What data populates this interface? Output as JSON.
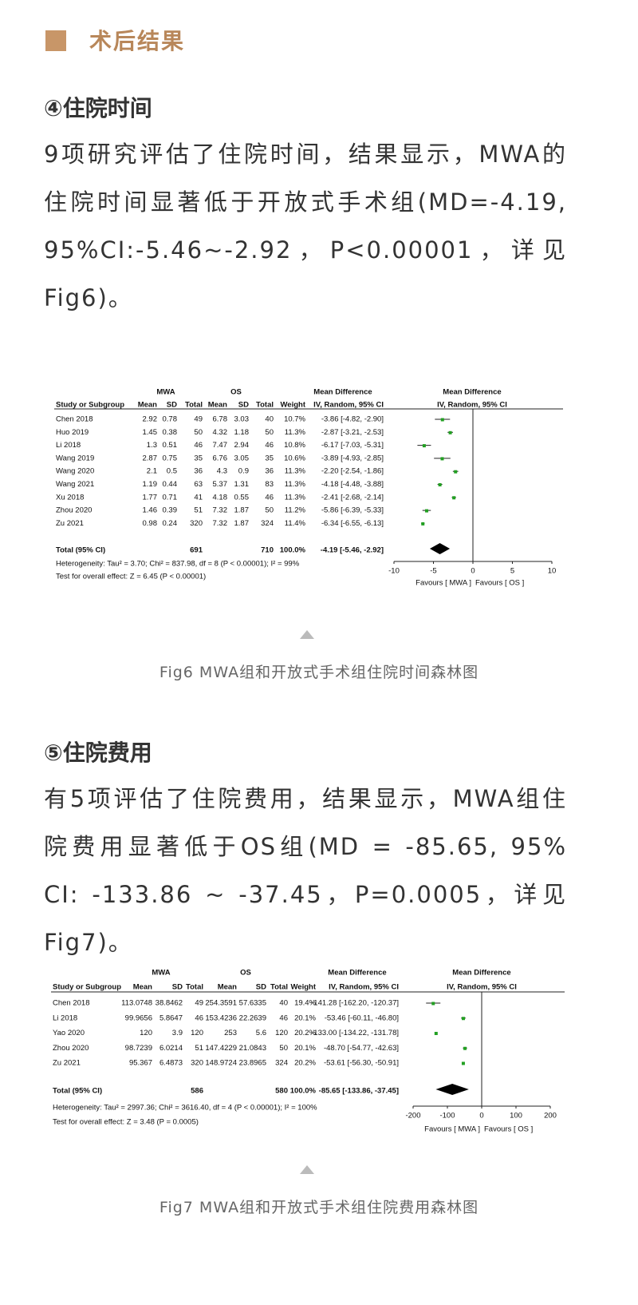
{
  "section_title": "术后结果",
  "subsections": [
    {
      "heading": "④住院时间",
      "paragraph": "9项研究评估了住院时间，结果显示，MWA的住院时间显著低于开放式手术组(MD=-4.19, 95%CI:-5.46~-2.92，P<0.00001，详见Fig6)。",
      "figure": {
        "group1": "MWA",
        "group2": "OS",
        "effect_header": "Mean Difference",
        "plot_header": "Mean Difference",
        "columns": [
          "Study or Subgroup",
          "Mean",
          "SD",
          "Total",
          "Mean",
          "SD",
          "Total",
          "Weight",
          "IV, Random, 95% CI"
        ],
        "plot_method": "IV, Random, 95% CI",
        "rows": [
          {
            "cells": [
              "Chen 2018",
              "2.92",
              "0.78",
              "49",
              "6.78",
              "3.03",
              "40",
              "10.7%",
              "-3.86 [-4.82, -2.90]"
            ],
            "md": -3.86,
            "lo": -4.82,
            "hi": -2.9
          },
          {
            "cells": [
              "Huo 2019",
              "1.45",
              "0.38",
              "50",
              "4.32",
              "1.18",
              "50",
              "11.3%",
              "-2.87 [-3.21, -2.53]"
            ],
            "md": -2.87,
            "lo": -3.21,
            "hi": -2.53
          },
          {
            "cells": [
              "Li 2018",
              "1.3",
              "0.51",
              "46",
              "7.47",
              "2.94",
              "46",
              "10.8%",
              "-6.17 [-7.03, -5.31]"
            ],
            "md": -6.17,
            "lo": -7.03,
            "hi": -5.31
          },
          {
            "cells": [
              "Wang 2019",
              "2.87",
              "0.75",
              "35",
              "6.76",
              "3.05",
              "35",
              "10.6%",
              "-3.89 [-4.93, -2.85]"
            ],
            "md": -3.89,
            "lo": -4.93,
            "hi": -2.85
          },
          {
            "cells": [
              "Wang 2020",
              "2.1",
              "0.5",
              "36",
              "4.3",
              "0.9",
              "36",
              "11.3%",
              "-2.20 [-2.54, -1.86]"
            ],
            "md": -2.2,
            "lo": -2.54,
            "hi": -1.86
          },
          {
            "cells": [
              "Wang 2021",
              "1.19",
              "0.44",
              "63",
              "5.37",
              "1.31",
              "83",
              "11.3%",
              "-4.18 [-4.48, -3.88]"
            ],
            "md": -4.18,
            "lo": -4.48,
            "hi": -3.88
          },
          {
            "cells": [
              "Xu 2018",
              "1.77",
              "0.71",
              "41",
              "4.18",
              "0.55",
              "46",
              "11.3%",
              "-2.41 [-2.68, -2.14]"
            ],
            "md": -2.41,
            "lo": -2.68,
            "hi": -2.14
          },
          {
            "cells": [
              "Zhou 2020",
              "1.46",
              "0.39",
              "51",
              "7.32",
              "1.87",
              "50",
              "11.2%",
              "-5.86 [-6.39, -5.33]"
            ],
            "md": -5.86,
            "lo": -6.39,
            "hi": -5.33
          },
          {
            "cells": [
              "Zu 2021",
              "0.98",
              "0.24",
              "320",
              "7.32",
              "1.87",
              "324",
              "11.4%",
              "-6.34 [-6.55, -6.13]"
            ],
            "md": -6.34,
            "lo": -6.55,
            "hi": -6.13
          }
        ],
        "total": {
          "label": "Total (95% CI)",
          "total1": "691",
          "total2": "710",
          "weight": "100.0%",
          "ci": "-4.19 [-5.46, -2.92]",
          "md": -4.19,
          "lo": -5.46,
          "hi": -2.92
        },
        "heterogeneity": "Heterogeneity: Tau² = 3.70; Chi² = 837.98, df = 8 (P < 0.00001); I² = 99%",
        "overall_effect": "Test for overall effect: Z = 6.45 (P < 0.00001)",
        "xlim": [
          -10,
          10
        ],
        "xticks": [
          -10,
          -5,
          0,
          5,
          10
        ],
        "favours_left": "Favours [ MWA ]",
        "favours_right": "Favours [ OS ]"
      },
      "caption": "Fig6 MWA组和开放式手术组住院时间森林图"
    },
    {
      "heading": "⑤住院费用",
      "paragraph": "有5项评估了住院费用，结果显示，MWA组住院费用显著低于OS组(MD = -85.65, 95% CI: -133.86 ~ -37.45，P=0.0005，详见Fig7)。",
      "figure": {
        "group1": "MWA",
        "group2": "OS",
        "effect_header": "Mean Difference",
        "plot_header": "Mean Difference",
        "columns": [
          "Study or Subgroup",
          "Mean",
          "SD",
          "Total",
          "Mean",
          "SD",
          "Total",
          "Weight",
          "IV, Random, 95% CI"
        ],
        "plot_method": "IV, Random, 95% CI",
        "rows": [
          {
            "cells": [
              "Chen 2018",
              "113.0748",
              "38.8462",
              "49",
              "254.3591",
              "57.6335",
              "40",
              "19.4%",
              "-141.28 [-162.20, -120.37]"
            ],
            "md": -141.28,
            "lo": -162.2,
            "hi": -120.37
          },
          {
            "cells": [
              "Li 2018",
              "99.9656",
              "5.8647",
              "46",
              "153.4236",
              "22.2639",
              "46",
              "20.1%",
              "-53.46 [-60.11, -46.80]"
            ],
            "md": -53.46,
            "lo": -60.11,
            "hi": -46.8
          },
          {
            "cells": [
              "Yao 2020",
              "120",
              "3.9",
              "120",
              "253",
              "5.6",
              "120",
              "20.2%",
              "-133.00 [-134.22, -131.78]"
            ],
            "md": -133.0,
            "lo": -134.22,
            "hi": -131.78
          },
          {
            "cells": [
              "Zhou 2020",
              "98.7239",
              "6.0214",
              "51",
              "147.4229",
              "21.0843",
              "50",
              "20.1%",
              "-48.70 [-54.77, -42.63]"
            ],
            "md": -48.7,
            "lo": -54.77,
            "hi": -42.63
          },
          {
            "cells": [
              "Zu 2021",
              "95.367",
              "6.4873",
              "320",
              "148.9724",
              "23.8965",
              "324",
              "20.2%",
              "-53.61 [-56.30, -50.91]"
            ],
            "md": -53.61,
            "lo": -56.3,
            "hi": -50.91
          }
        ],
        "total": {
          "label": "Total (95% CI)",
          "total1": "586",
          "total2": "580",
          "weight": "100.0%",
          "ci": "-85.65 [-133.86, -37.45]",
          "md": -85.65,
          "lo": -133.86,
          "hi": -37.45
        },
        "heterogeneity": "Heterogeneity: Tau² = 2997.36; Chi² = 3616.40, df = 4 (P < 0.00001); I² = 100%",
        "overall_effect": "Test for overall effect: Z = 3.48 (P = 0.0005)",
        "xlim": [
          -200,
          200
        ],
        "xticks": [
          -200,
          -100,
          0,
          100,
          200
        ],
        "favours_left": "Favours [ MWA ]",
        "favours_right": "Favours [ OS ]"
      },
      "caption": "Fig7 MWA组和开放式手术组住院费用森林图"
    }
  ]
}
